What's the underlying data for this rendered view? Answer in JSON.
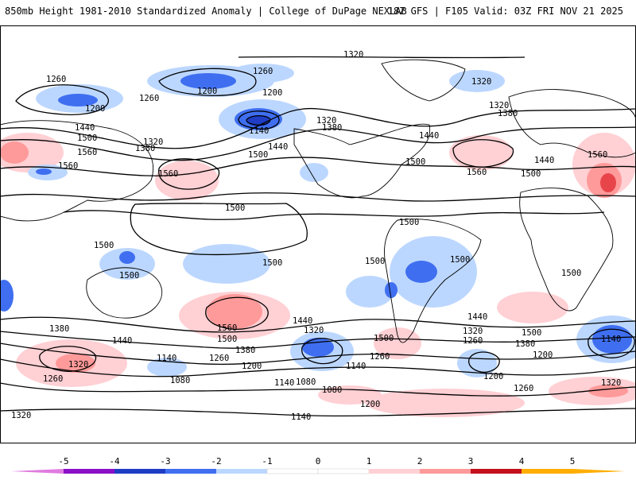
{
  "header": {
    "title": "850mb Height 1981-2010 Standardized Anomaly | College of DuPage NEXLAB",
    "run_info": "18Z GFS | F105 Valid: 03Z FRI NOV 21 2025"
  },
  "map": {
    "contour_labels": [
      "1320",
      "1260",
      "1200",
      "1260",
      "1200",
      "1260",
      "1320",
      "1200",
      "1140",
      "1320",
      "1380",
      "1320",
      "1380",
      "1440",
      "1500",
      "1560",
      "1320",
      "1380",
      "1440",
      "1500",
      "1560",
      "1440",
      "1500",
      "1560",
      "1560",
      "1500",
      "1440",
      "1560",
      "1500",
      "1500",
      "1500",
      "1500",
      "1500",
      "1500",
      "1500",
      "1500",
      "1500",
      "1440",
      "1380",
      "1320",
      "1560",
      "1500",
      "1380",
      "1260",
      "1440",
      "1320",
      "1140",
      "1200",
      "1260",
      "1080",
      "1140",
      "1200",
      "1080",
      "1140",
      "1260",
      "1320",
      "1380",
      "1440",
      "1500",
      "1200",
      "1260",
      "1320",
      "1140",
      "1320",
      "1260",
      "1200",
      "1080",
      "1140"
    ],
    "color_scale": {
      "neg5": "#e07be0",
      "neg4": "#8a10c8",
      "neg3": "#1f3dc4",
      "neg2": "#3f6ff0",
      "neg1": "#bcd7ff",
      "zero": "#ffffff",
      "pos1": "#ffd0d4",
      "pos2": "#ff9a9a",
      "pos3": "#e8454a",
      "pos4": "#c4101c",
      "pos5": "#ffae00"
    }
  },
  "colorbar": {
    "ticks": [
      "-5",
      "-4",
      "-3",
      "-2",
      "-1",
      "0",
      "1",
      "2",
      "3",
      "4",
      "5"
    ]
  }
}
